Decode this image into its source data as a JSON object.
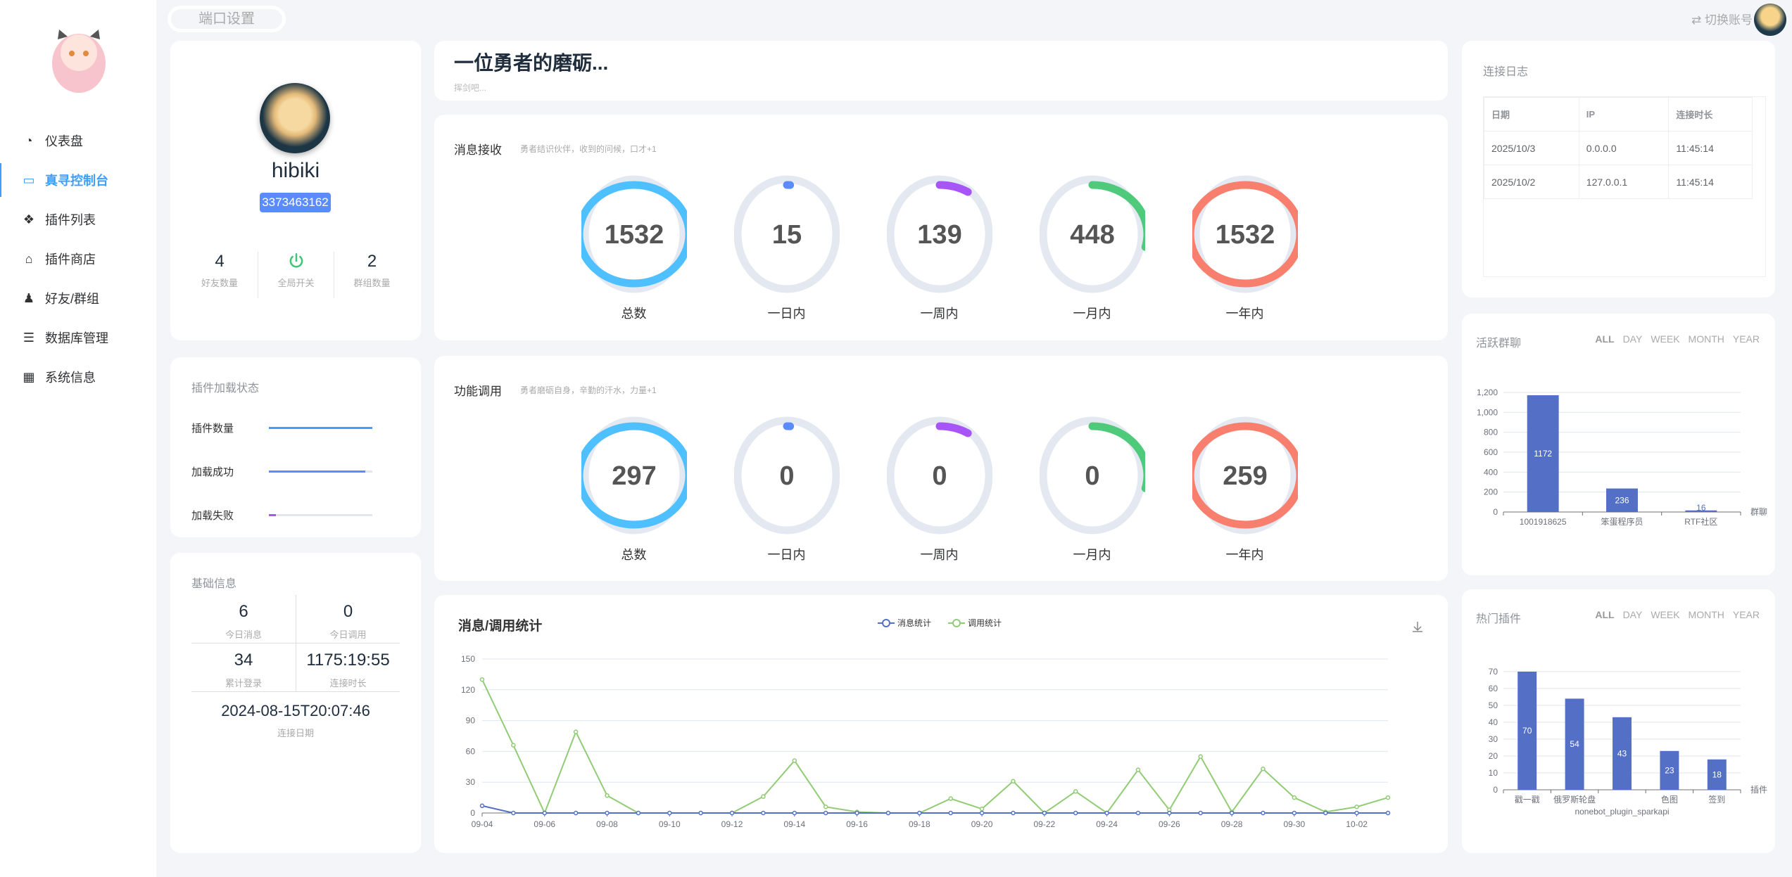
{
  "sidebar": {
    "items": [
      {
        "label": "仪表盘",
        "icon": "dashboard-icon"
      },
      {
        "label": "真寻控制台",
        "icon": "monitor-icon",
        "active": true
      },
      {
        "label": "插件列表",
        "icon": "plugins-icon"
      },
      {
        "label": "插件商店",
        "icon": "store-icon"
      },
      {
        "label": "好友/群组",
        "icon": "people-icon"
      },
      {
        "label": "数据库管理",
        "icon": "database-icon"
      },
      {
        "label": "系统信息",
        "icon": "grid-icon"
      }
    ]
  },
  "topbar": {
    "port_button": "端口设置",
    "switch_account": "切换账号"
  },
  "profile": {
    "name": "hibiki",
    "qq": "3373463162",
    "friends": "4",
    "friends_label": "好友数量",
    "global_switch_label": "全局开关",
    "groups": "2",
    "groups_label": "群组数量"
  },
  "plugin_status": {
    "title": "插件加载状态",
    "rows": [
      {
        "label": "插件数量",
        "fraction": 1.0,
        "color": "#409eff"
      },
      {
        "label": "加载成功",
        "fraction": 0.93,
        "color": "#5b8cff"
      },
      {
        "label": "加载失败",
        "fraction": 0.07,
        "color": "#a855f7"
      }
    ]
  },
  "basic_info": {
    "title": "基础信息",
    "today_msg": "6",
    "today_msg_label": "今日消息",
    "today_call": "0",
    "today_call_label": "今日调用",
    "total_login": "34",
    "total_login_label": "累计登录",
    "conn_duration": "1175:19:55",
    "conn_duration_label": "连接时长",
    "conn_date": "2024-08-15T20:07:46",
    "conn_date_label": "连接日期"
  },
  "hero": {
    "title": "一位勇者的磨砺...",
    "subtitle": "挥剑吧..."
  },
  "message_recv": {
    "title": "消息接收",
    "subtitle": "勇者结识伙伴，收到的问候，口才+1",
    "rings": [
      {
        "value": "1532",
        "label": "总数",
        "fraction": 1.0,
        "color": "#4fc0ff"
      },
      {
        "value": "15",
        "label": "一日内",
        "fraction": 0.01,
        "color": "#5b8cff"
      },
      {
        "value": "139",
        "label": "一周内",
        "fraction": 0.09,
        "color": "#a855f7"
      },
      {
        "value": "448",
        "label": "一月内",
        "fraction": 0.29,
        "color": "#4fc97a"
      },
      {
        "value": "1532",
        "label": "一年内",
        "fraction": 1.0,
        "color": "#f87f6e"
      }
    ]
  },
  "function_call": {
    "title": "功能调用",
    "subtitle": "勇者磨砺自身，辛勤的汗水，力量+1",
    "rings": [
      {
        "value": "297",
        "label": "总数",
        "fraction": 1.0,
        "color": "#4fc0ff"
      },
      {
        "value": "0",
        "label": "一日内",
        "fraction": 0.01,
        "color": "#5b8cff"
      },
      {
        "value": "0",
        "label": "一周内",
        "fraction": 0.09,
        "color": "#a855f7"
      },
      {
        "value": "0",
        "label": "一月内",
        "fraction": 0.29,
        "color": "#4fc97a"
      },
      {
        "value": "259",
        "label": "一年内",
        "fraction": 1.0,
        "color": "#f87f6e"
      }
    ]
  },
  "conn_log": {
    "title": "连接日志",
    "headers": [
      "日期",
      "IP",
      "连接时长"
    ],
    "rows": [
      [
        "2025/10/3",
        "0.0.0.0",
        "11:45:14"
      ],
      [
        "2025/10/2",
        "127.0.0.1",
        "11:45:14"
      ]
    ]
  },
  "ranges": [
    "ALL",
    "DAY",
    "WEEK",
    "MONTH",
    "YEAR"
  ],
  "chart_data": [
    {
      "type": "line",
      "title": "消息/调用统计",
      "legend_position": "top-center",
      "x": [
        "09-04",
        "09-05",
        "09-06",
        "09-07",
        "09-08",
        "09-09",
        "09-10",
        "09-11",
        "09-12",
        "09-13",
        "09-14",
        "09-15",
        "09-16",
        "09-17",
        "09-18",
        "09-19",
        "09-20",
        "09-21",
        "09-22",
        "09-23",
        "09-24",
        "09-25",
        "09-26",
        "09-27",
        "09-28",
        "09-29",
        "09-30",
        "10-01",
        "10-02",
        "10-03"
      ],
      "xticks": [
        "09-04",
        "09-06",
        "09-08",
        "09-10",
        "09-12",
        "09-14",
        "09-16",
        "09-18",
        "09-20",
        "09-22",
        "09-24",
        "09-26",
        "09-28",
        "09-30",
        "10-02"
      ],
      "ylim": [
        0,
        150
      ],
      "yticks": [
        0,
        30,
        60,
        90,
        120,
        150
      ],
      "grid": true,
      "series": [
        {
          "name": "消息统计",
          "color": "#5470c6",
          "values": [
            7,
            0,
            0,
            0,
            0,
            0,
            0,
            0,
            0,
            0,
            0,
            0,
            0,
            0,
            0,
            0,
            0,
            0,
            0,
            0,
            0,
            0,
            0,
            0,
            0,
            0,
            0,
            0,
            0,
            0
          ]
        },
        {
          "name": "调用统计",
          "color": "#91cc75",
          "values": [
            130,
            66,
            0,
            79,
            17,
            0,
            0,
            0,
            0,
            16,
            51,
            6,
            1,
            0,
            0,
            14,
            4,
            31,
            0,
            21,
            0,
            42,
            3,
            55,
            1,
            43,
            15,
            1,
            6,
            15
          ]
        }
      ]
    },
    {
      "type": "bar",
      "title": "活跃群聊",
      "xlabel": "群聊",
      "categories": [
        "1001918625",
        "笨蛋程序员",
        "RTF社区"
      ],
      "values": [
        1172,
        236,
        16
      ],
      "ylim": [
        0,
        1200
      ],
      "yticks": [
        0,
        200,
        400,
        600,
        800,
        1000,
        1200
      ],
      "ytick_labels": [
        "0",
        "200",
        "400",
        "600",
        "800",
        "1,000",
        "1,200"
      ],
      "color": "#5470c6",
      "grid": true
    },
    {
      "type": "bar",
      "title": "热门插件",
      "xlabel": "插件",
      "categories": [
        "戳一戳",
        "俄罗斯轮盘",
        "nonebot_plugin_sparkapi",
        "色图",
        "签到"
      ],
      "values": [
        70,
        54,
        43,
        23,
        18
      ],
      "ylim": [
        0,
        70
      ],
      "yticks": [
        0,
        10,
        20,
        30,
        40,
        50,
        60,
        70
      ],
      "ytick_labels": [
        "0",
        "10",
        "20",
        "30",
        "40",
        "50",
        "60",
        "70"
      ],
      "color": "#5470c6",
      "grid": true
    }
  ]
}
